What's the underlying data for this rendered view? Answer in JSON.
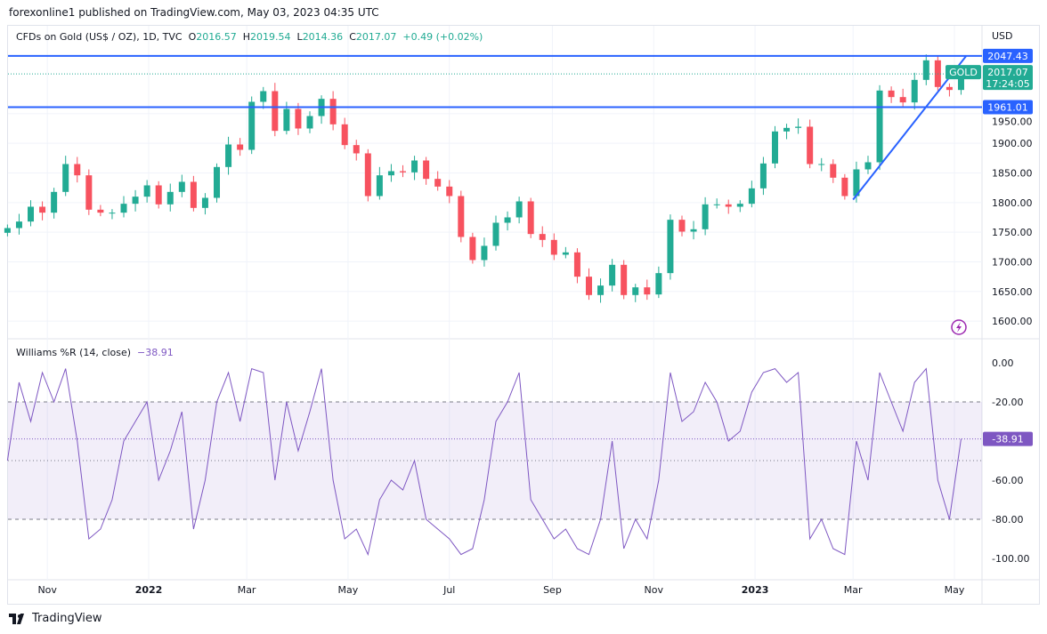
{
  "header": {
    "published": "forexonline1 published on TradingView.com, May 03, 2023 04:35 UTC"
  },
  "legend": {
    "symbol": "CFDs on Gold (US$ / OZ), 1D, TVC",
    "o_label": "O",
    "o": "2016.57",
    "h_label": "H",
    "h": "2019.54",
    "l_label": "L",
    "l": "2014.36",
    "c_label": "C",
    "c": "2017.07",
    "change": "+0.49 (+0.02%)"
  },
  "indicator": {
    "name": "Williams %R (14, close)",
    "value": "−38.91"
  },
  "price_axis": {
    "currency": "USD",
    "ticks": [
      "1950.00",
      "1900.00",
      "1850.00",
      "1800.00",
      "1750.00",
      "1700.00",
      "1650.00",
      "1600.00"
    ],
    "tick_values": [
      1950,
      1900,
      1850,
      1800,
      1750,
      1700,
      1650,
      1600
    ]
  },
  "labels": {
    "resistance": "2047.43",
    "support": "1961.01",
    "symbol_tag": "GOLD",
    "last_price": "2017.07",
    "countdown": "17:24:05",
    "wr_last": "-38.91"
  },
  "wr_axis": {
    "ticks": [
      "0.00",
      "-20.00",
      "-60.00",
      "-80.00",
      "-100.00"
    ],
    "tick_values": [
      0,
      -20,
      -60,
      -80,
      -100
    ]
  },
  "time_axis": {
    "ticks": [
      "Nov",
      "2022",
      "Mar",
      "May",
      "Jul",
      "Sep",
      "Nov",
      "2023",
      "Mar",
      "May"
    ],
    "tick_dates": [
      "2021-11-01",
      "2022-01-01",
      "2022-03-01",
      "2022-05-01",
      "2022-07-01",
      "2022-09-01",
      "2022-11-01",
      "2023-01-01",
      "2023-03-01",
      "2023-05-01"
    ]
  },
  "footer": {
    "brand": "TradingView"
  },
  "colors": {
    "up": "#22ab94",
    "down": "#f7525f",
    "lines": "#2962ff",
    "wr": "#7e57c2"
  },
  "chart_data": {
    "type": "candlestick",
    "title": "CFDs on Gold (US$ / OZ), 1D, TVC",
    "ylim": [
      1580,
      2075
    ],
    "horizontal_lines": [
      2047.43,
      1961.01
    ],
    "trendline": {
      "from": [
        "2023-03-01",
        1805
      ],
      "to": [
        "2023-05-08",
        2047
      ]
    },
    "start_date": "2021-10-08",
    "step_days": 7,
    "closes": [
      1757,
      1768,
      1793,
      1783,
      1818,
      1865,
      1846,
      1788,
      1783,
      1783,
      1798,
      1810,
      1829,
      1797,
      1818,
      1835,
      1791,
      1808,
      1860,
      1898,
      1889,
      1970,
      1988,
      1921,
      1958,
      1925,
      1946,
      1975,
      1932,
      1897,
      1883,
      1811,
      1846,
      1853,
      1851,
      1871,
      1840,
      1827,
      1811,
      1742,
      1703,
      1727,
      1766,
      1775,
      1802,
      1747,
      1737,
      1712,
      1716,
      1675,
      1644,
      1660,
      1695,
      1644,
      1657,
      1645,
      1681,
      1771,
      1751,
      1755,
      1797,
      1797,
      1793,
      1798,
      1824,
      1866,
      1920,
      1926,
      1928,
      1865,
      1865,
      1842,
      1811,
      1856,
      1868,
      1989,
      1978,
      1969,
      2007,
      2040,
      1995,
      1990,
      2017.07
    ],
    "williams_r": {
      "name": "Williams %R (14, close)",
      "ylim": [
        -100,
        0
      ],
      "levels": [
        -20,
        -50,
        -80
      ],
      "values": [
        -50,
        -10,
        -30,
        -5,
        -20,
        -3,
        -40,
        -90,
        -85,
        -70,
        -40,
        -30,
        -20,
        -60,
        -45,
        -25,
        -85,
        -60,
        -20,
        -5,
        -30,
        -3,
        -5,
        -60,
        -20,
        -45,
        -25,
        -3,
        -60,
        -90,
        -85,
        -98,
        -70,
        -60,
        -65,
        -50,
        -80,
        -85,
        -90,
        -98,
        -95,
        -70,
        -30,
        -20,
        -5,
        -70,
        -80,
        -90,
        -85,
        -95,
        -98,
        -80,
        -40,
        -95,
        -80,
        -90,
        -60,
        -5,
        -30,
        -25,
        -10,
        -20,
        -40,
        -35,
        -15,
        -5,
        -3,
        -10,
        -5,
        -90,
        -80,
        -95,
        -98,
        -40,
        -60,
        -5,
        -20,
        -35,
        -10,
        -3,
        -60,
        -80,
        -38.91
      ]
    }
  }
}
